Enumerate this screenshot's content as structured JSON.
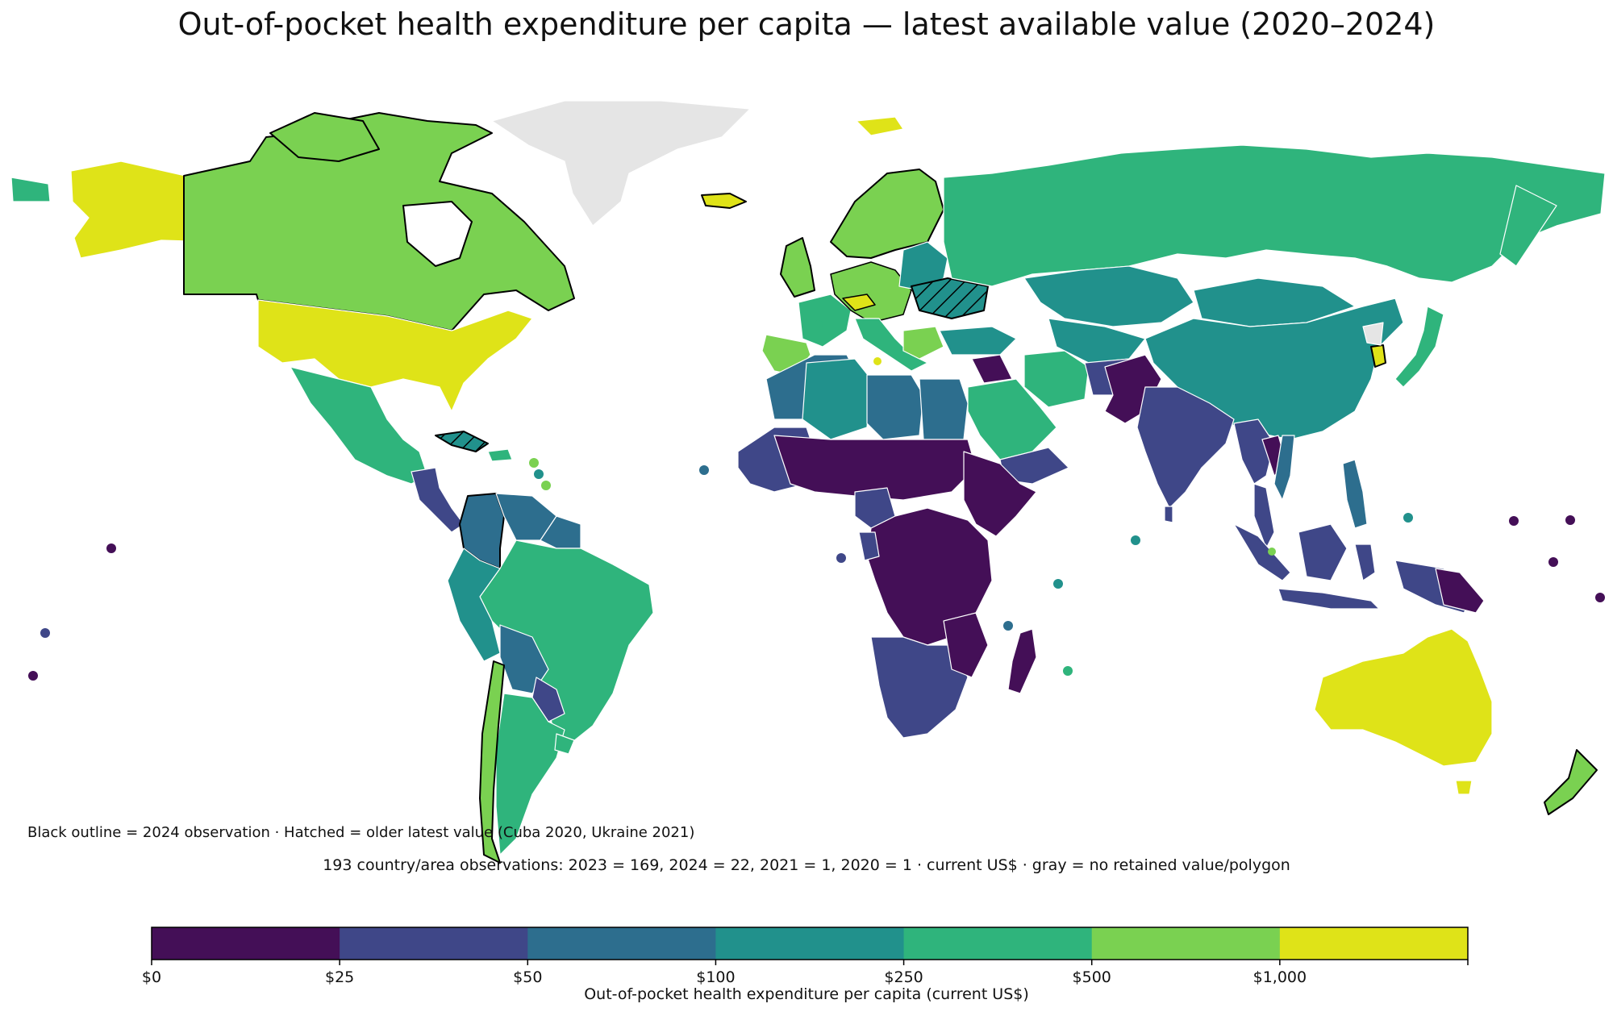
{
  "title": "Out-of-pocket health expenditure per capita — latest available value (2020–2024)",
  "note": "Black outline = 2024 observation · Hatched = older latest value (Cuba 2020, Ukraine 2021)",
  "summary": "193 country/area observations: 2023 = 169, 2024 = 22, 2021 = 1, 2020 = 1 · current US$ · gray = no retained value/polygon",
  "colorbar": {
    "title": "Out-of-pocket health expenditure per capita (current US$)",
    "ticks": [
      "$0",
      "$25",
      "$50",
      "$100",
      "$250",
      "$500",
      "$1,000"
    ],
    "colors": [
      "#440f57",
      "#3f4788",
      "#2d6e8e",
      "#21918c",
      "#2fb47c",
      "#7ad151",
      "#dfe318"
    ]
  },
  "colors": {
    "no_data": "#e5e5e5",
    "border_white": "#ffffff",
    "outline_2024": "#000000"
  }
}
